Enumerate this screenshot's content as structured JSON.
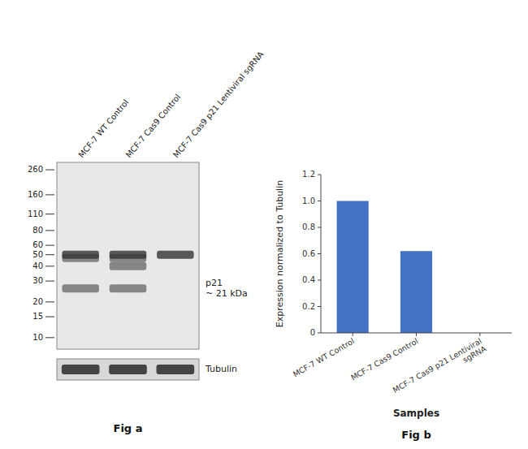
{
  "chart_data": [
    {
      "type": "blot",
      "title": "Fig a",
      "categories": [
        "MCF-7 WT Control",
        "MCF-7 Cas9 Control",
        "MCF-7 Cas9 p21 Lentiviral sgRNA"
      ],
      "log": "y",
      "ylim": [
        8,
        300
      ],
      "yticks": [
        260,
        160,
        110,
        80,
        60,
        50,
        40,
        30,
        20,
        15,
        10
      ],
      "bands": [
        [
          50,
          50,
          50
        ],
        [
          47,
          47,
          null
        ],
        [
          null,
          40,
          null
        ],
        [
          26,
          26,
          null
        ]
      ],
      "annotations": [
        {
          "text": "p21\n~ 21 kDa",
          "y": 26
        },
        {
          "text": "Tubulin"
        }
      ]
    },
    {
      "type": "bar",
      "title": "Fig b",
      "categories": [
        "MCF-7 WT Control",
        "MCF-7 Cas9 Control",
        "MCF-7 Cas9 p21 Lentiviral\nsgRNA"
      ],
      "values": [
        1.0,
        0.62,
        0.0
      ],
      "color": "#4472C4",
      "ylim": [
        0,
        1.2
      ],
      "yticks": [
        0,
        0.2,
        0.4,
        0.6,
        0.8,
        {
          "value": 1.0,
          "label": "1.0"
        },
        1.2
      ],
      "ylabel": "Expression  normalized to Tubulin",
      "xlabel": "Samples"
    }
  ]
}
